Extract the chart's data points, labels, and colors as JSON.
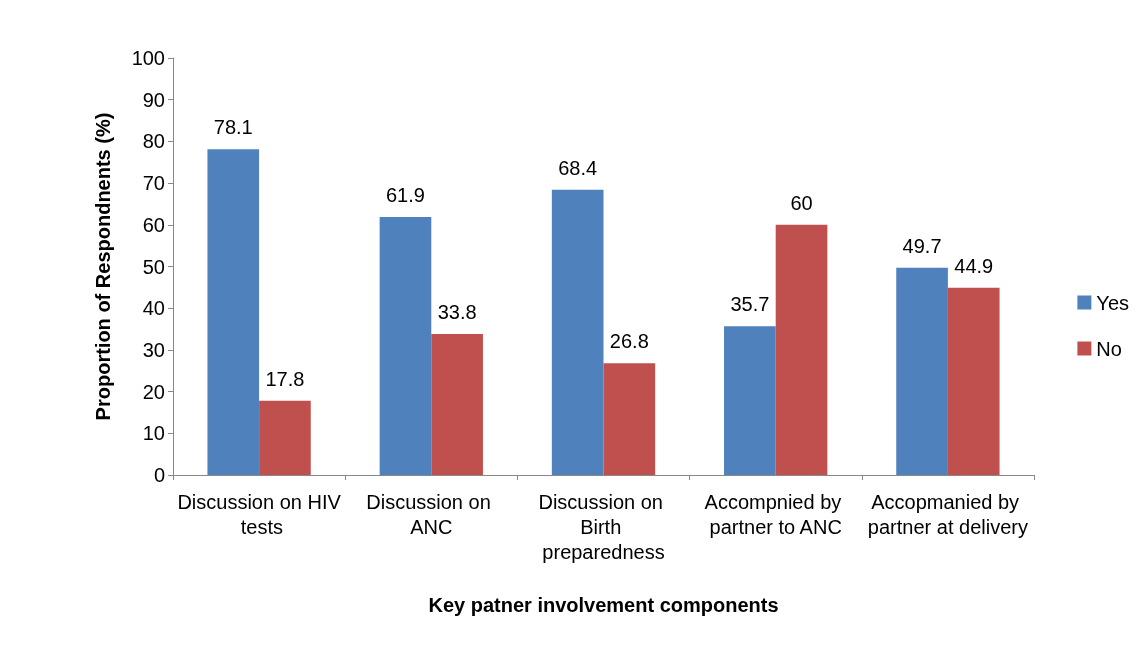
{
  "chart_data": {
    "type": "bar",
    "xlabel": "Key patner involvement components",
    "ylabel": "Proportion of Respondnents (%)",
    "categories": [
      "Discussion on HIV tests",
      "Discussion on ANC",
      "Discussion on Birth preparedness",
      "Accompnied by partner to ANC",
      "Accopmanied by partner at delivery"
    ],
    "series": [
      {
        "name": "Yes",
        "color": "#4f81bd",
        "values": [
          78.1,
          61.9,
          68.4,
          35.7,
          49.7
        ]
      },
      {
        "name": "No",
        "color": "#c0504d",
        "values": [
          17.8,
          33.8,
          26.8,
          60,
          44.9
        ]
      }
    ],
    "ylim": [
      0,
      100
    ],
    "yticks": [
      0,
      10,
      20,
      30,
      40,
      50,
      60,
      70,
      80,
      90,
      100
    ],
    "grid": false,
    "legend": "right",
    "data_labels": true
  }
}
